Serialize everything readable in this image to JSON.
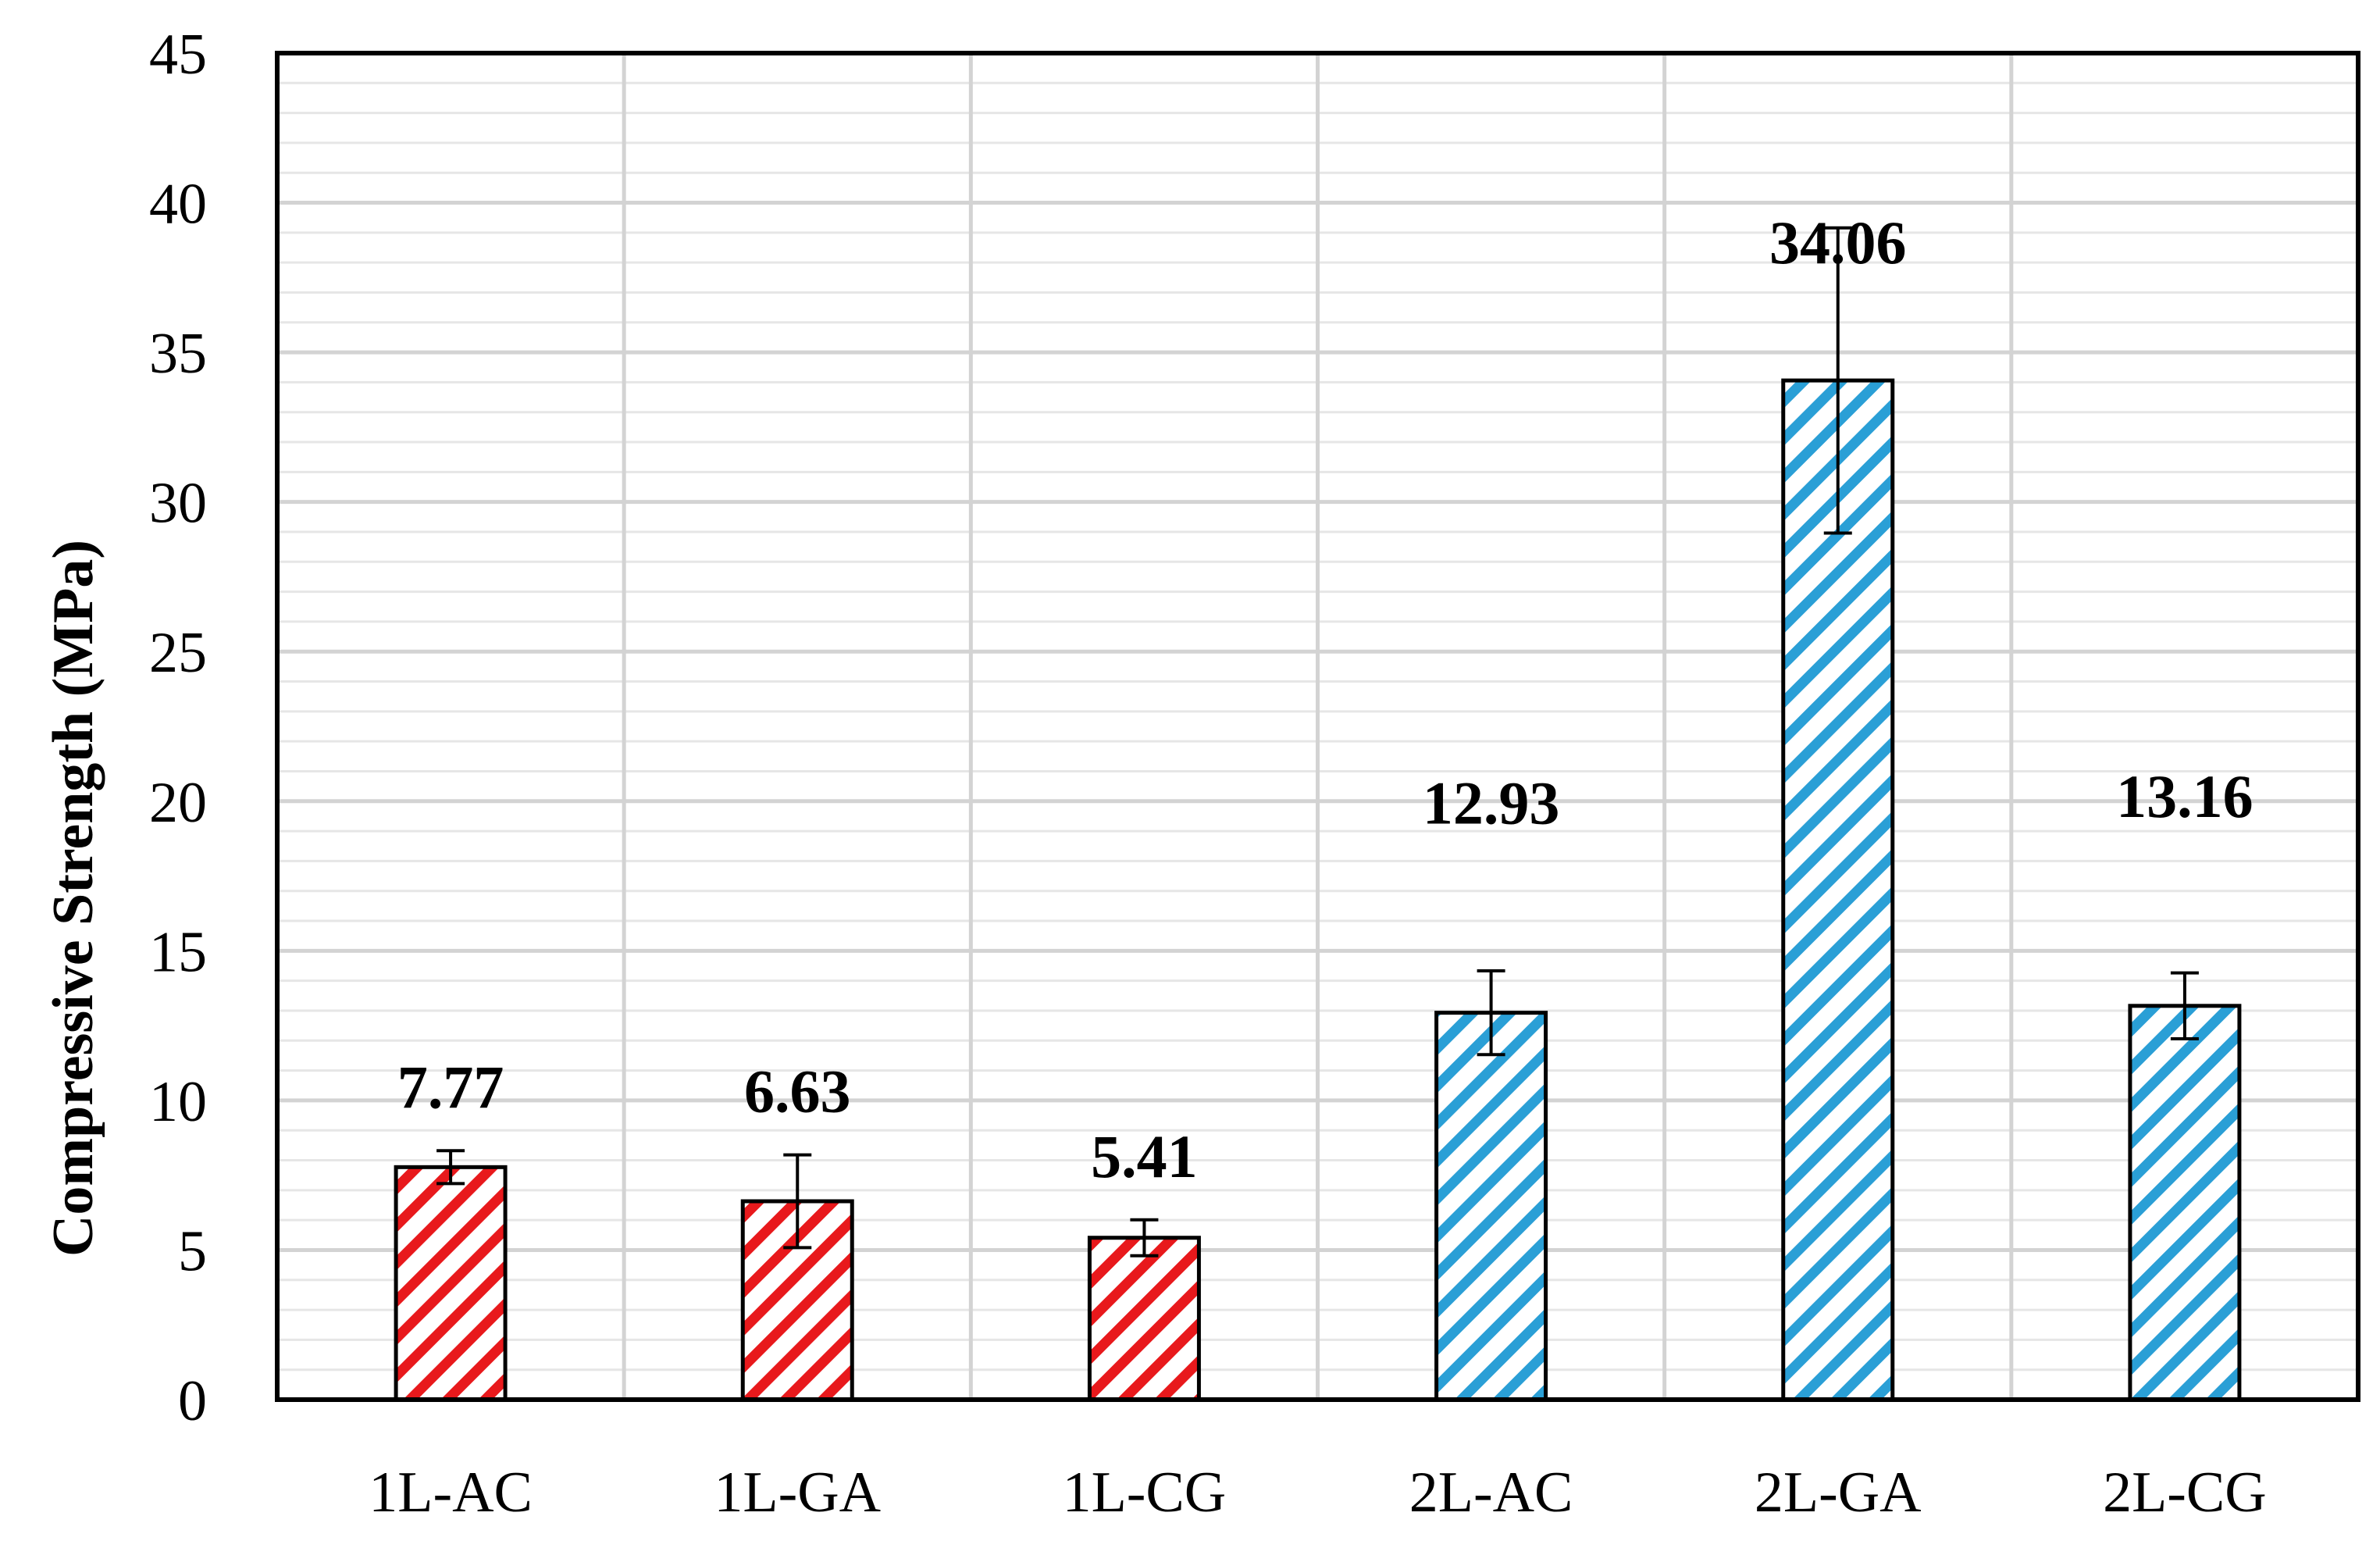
{
  "chart_data": {
    "type": "bar",
    "title": "",
    "xlabel": "",
    "ylabel": "Compressive  Strength (MPa)",
    "ylim": [
      0,
      45
    ],
    "yticks": [
      0,
      5,
      10,
      15,
      20,
      25,
      30,
      35,
      40,
      45
    ],
    "grid": true,
    "legend": "none",
    "categories": [
      "1L-AC",
      "1L-GA",
      "1L-CG",
      "2L-AC",
      "2L-GA",
      "2L-CG"
    ],
    "values": [
      7.77,
      6.63,
      5.41,
      12.93,
      34.06,
      13.16
    ],
    "data_labels": [
      "7.77",
      "6.63",
      "5.41",
      "12.93",
      "34.06",
      "13.16"
    ],
    "error": [
      0.55,
      1.55,
      0.6,
      1.4,
      5.1,
      1.1
    ],
    "bar_colors": [
      "#e8191c",
      "#e8191c",
      "#e8191c",
      "#2a9fd6",
      "#2a9fd6",
      "#2a9fd6"
    ],
    "fill_pattern": "diagonal-hatch"
  }
}
